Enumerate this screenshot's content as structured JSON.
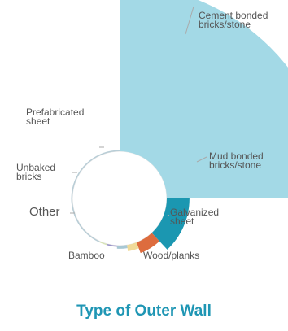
{
  "chart_data": {
    "type": "pie",
    "subtype": "rose",
    "title": "Type of Outer Wall",
    "direction": "clockwise from 12 o'clock",
    "categories": [
      "Cement bonded bricks/stone",
      "Mud bonded bricks/stone",
      "Galvanized sheet",
      "Wood/planks",
      "Bamboo",
      "Other",
      "Unbaked bricks",
      "Prefabricated sheet"
    ],
    "values": [
      64.0,
      18.0,
      9.0,
      5.0,
      2.5,
      1.0,
      0.3,
      0.2
    ],
    "colors": [
      "#a3d9e6",
      "#1b97b1",
      "#dd6c3e",
      "#f0da98",
      "#a8c8d4",
      "#9a94c9",
      "#d8e4b8",
      "#b8cdd6"
    ],
    "value_unit": "%"
  },
  "labels": [
    "Cement bonded\nbricks/stone",
    "Mud bonded\nbricks/stone",
    "Galvanized\nsheet",
    "Wood/planks",
    "Bamboo",
    "Other",
    "Unbaked\nbricks",
    "Prefabricated\nsheet"
  ]
}
